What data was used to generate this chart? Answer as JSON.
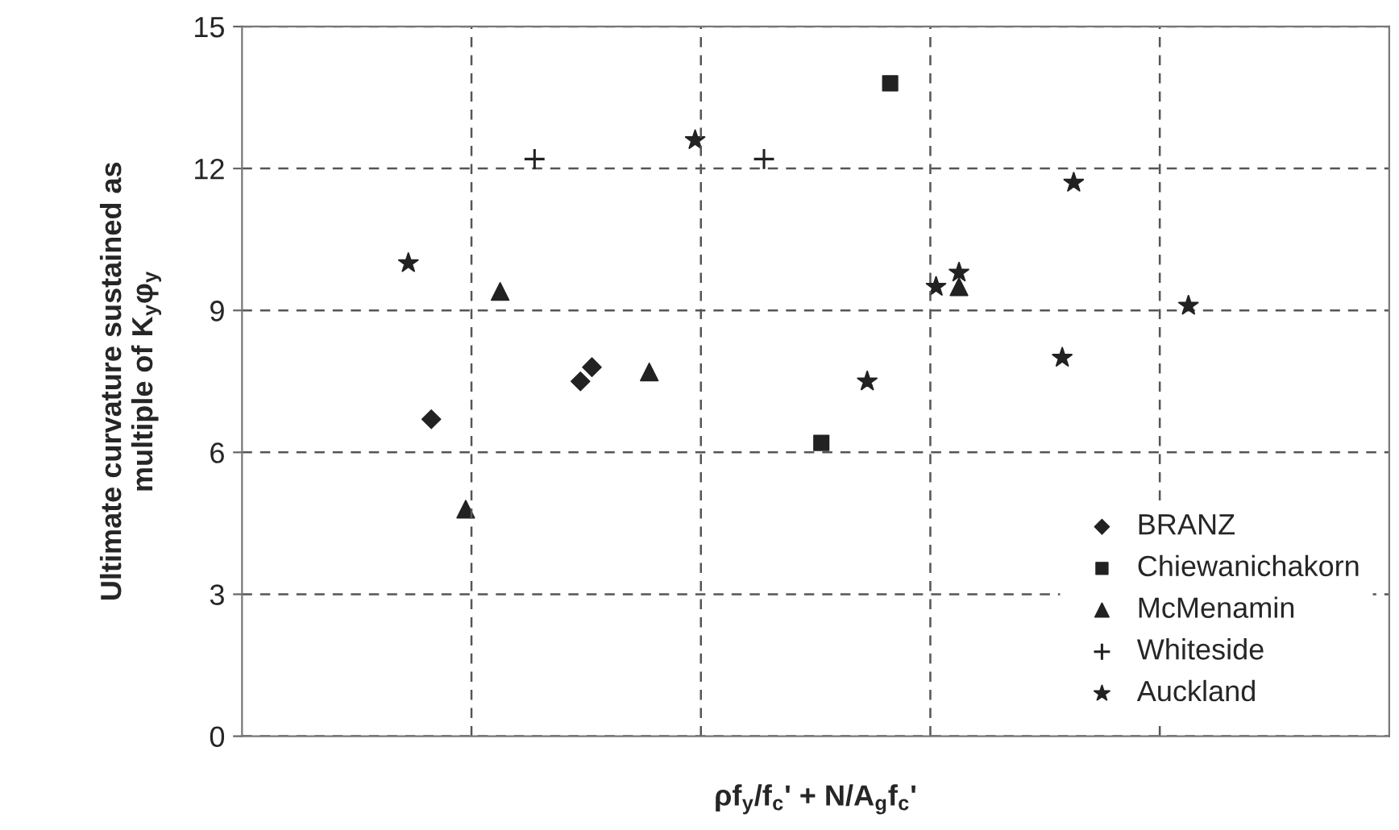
{
  "chart_data": {
    "type": "scatter",
    "xlabel": "ρf$_{y}$/f$_{c}$' + N/A$_{g}$f$_{c}$'",
    "ylabel": "Ultimate curvature sustained as\nmultiple of K$_{y}$φ$_{y}$",
    "categories": [
      null,
      null,
      null,
      null,
      null,
      null,
      null,
      null,
      null,
      null,
      null,
      null,
      null,
      null,
      null,
      null,
      null,
      null,
      null,
      null,
      null,
      null,
      null,
      null,
      null,
      null,
      null,
      null,
      null,
      null,
      null,
      null,
      null,
      null,
      null,
      null,
      null,
      null,
      null,
      null,
      null,
      null,
      null,
      null,
      null,
      null,
      null,
      null,
      null,
      null,
      null,
      null,
      null,
      null,
      null,
      null,
      null,
      null,
      null,
      null,
      null,
      null,
      null,
      null,
      null,
      null,
      null,
      null,
      null,
      null,
      null,
      null,
      null,
      null,
      null,
      null,
      null,
      null,
      null,
      null,
      null,
      null,
      null,
      null,
      null,
      null,
      null,
      null,
      null,
      null,
      null,
      null,
      null,
      null,
      null,
      null,
      null,
      null,
      null,
      null
    ],
    "ylim": [
      0,
      15
    ],
    "yticks": [
      0,
      3,
      6,
      9,
      12,
      15
    ],
    "tick_labels": "y",
    "grid": true,
    "legend": "bottom right",
    "series": [
      {
        "name": "BRANZ",
        "color": "#222222",
        "marker": "diamond",
        "values": [
          null,
          null,
          null,
          null,
          null,
          null,
          null,
          null,
          null,
          null,
          null,
          null,
          null,
          null,
          null,
          null,
          6.7,
          null,
          null,
          null,
          null,
          null,
          null,
          null,
          null,
          null,
          null,
          null,
          null,
          7.5,
          7.8,
          null,
          null,
          null,
          null,
          null,
          null,
          null,
          null,
          null,
          null,
          null,
          null,
          null,
          null,
          null,
          null,
          null,
          null,
          null,
          null,
          null,
          null,
          null,
          null,
          null,
          null,
          null,
          null,
          null,
          null,
          null,
          null,
          null,
          null,
          null,
          null,
          null,
          null,
          null,
          null,
          null,
          null,
          null,
          null,
          null,
          null,
          null,
          null,
          null,
          null,
          null,
          null,
          null,
          null,
          null,
          null,
          null,
          null,
          null,
          null,
          null,
          null,
          null,
          null,
          null,
          null,
          null,
          null,
          null
        ]
      },
      {
        "name": "Chiewanichakorn",
        "color": "#222222",
        "marker": "square",
        "values": [
          null,
          null,
          null,
          null,
          null,
          null,
          null,
          null,
          null,
          null,
          null,
          null,
          null,
          null,
          null,
          null,
          null,
          null,
          null,
          null,
          null,
          null,
          null,
          null,
          null,
          null,
          null,
          null,
          null,
          null,
          null,
          null,
          null,
          null,
          null,
          null,
          null,
          null,
          null,
          null,
          null,
          null,
          null,
          null,
          null,
          null,
          null,
          null,
          null,
          null,
          6.2,
          null,
          null,
          null,
          null,
          null,
          13.8,
          null,
          null,
          null,
          null,
          null,
          null,
          null,
          null,
          null,
          null,
          null,
          null,
          null,
          null,
          null,
          null,
          null,
          null,
          null,
          null,
          null,
          null,
          null,
          null,
          null,
          null,
          null,
          null,
          null,
          null,
          null,
          null,
          null,
          null,
          null,
          null,
          null,
          null,
          null,
          null,
          null,
          null,
          null
        ]
      },
      {
        "name": "McMenamin",
        "color": "#222222",
        "marker": "triangle",
        "values": [
          null,
          null,
          null,
          null,
          null,
          null,
          null,
          null,
          null,
          null,
          null,
          null,
          null,
          null,
          null,
          null,
          null,
          null,
          null,
          4.8,
          null,
          null,
          9.4,
          null,
          null,
          null,
          null,
          null,
          null,
          null,
          null,
          null,
          null,
          null,
          null,
          7.7,
          null,
          null,
          null,
          null,
          null,
          null,
          null,
          null,
          null,
          null,
          null,
          null,
          null,
          null,
          null,
          null,
          null,
          null,
          null,
          null,
          null,
          null,
          null,
          null,
          null,
          null,
          9.5,
          null,
          null,
          null,
          null,
          null,
          null,
          null,
          null,
          null,
          null,
          null,
          null,
          null,
          null,
          null,
          null,
          null,
          null,
          null,
          null,
          null,
          null,
          null,
          null,
          null,
          null,
          null,
          null,
          null,
          null,
          null,
          null,
          null,
          null,
          null,
          null,
          null
        ]
      },
      {
        "name": "Whiteside",
        "color": "#222222",
        "marker": "cross",
        "values": [
          null,
          null,
          null,
          null,
          null,
          null,
          null,
          null,
          null,
          null,
          null,
          null,
          null,
          null,
          null,
          null,
          null,
          null,
          null,
          null,
          null,
          null,
          null,
          null,
          null,
          12.2,
          null,
          null,
          null,
          null,
          null,
          null,
          null,
          null,
          null,
          null,
          null,
          null,
          null,
          null,
          null,
          null,
          null,
          null,
          null,
          12.2,
          null,
          null,
          null,
          null,
          null,
          null,
          null,
          null,
          null,
          null,
          null,
          null,
          null,
          null,
          null,
          null,
          null,
          null,
          null,
          null,
          null,
          null,
          null,
          null,
          null,
          null,
          null,
          null,
          null,
          null,
          null,
          null,
          null,
          null,
          null,
          null,
          null,
          null,
          null,
          null,
          null,
          null,
          null,
          null,
          null,
          null,
          null,
          null,
          null,
          null,
          null,
          null,
          null,
          null
        ]
      },
      {
        "name": "Auckland",
        "color": "#222222",
        "marker": "star",
        "values": [
          null,
          null,
          null,
          null,
          null,
          null,
          null,
          null,
          null,
          null,
          null,
          null,
          null,
          null,
          10.0,
          null,
          null,
          null,
          null,
          null,
          null,
          null,
          null,
          null,
          null,
          null,
          null,
          null,
          null,
          null,
          null,
          null,
          null,
          null,
          null,
          null,
          null,
          null,
          null,
          12.6,
          null,
          null,
          null,
          null,
          null,
          null,
          null,
          null,
          null,
          null,
          null,
          null,
          null,
          null,
          7.5,
          null,
          null,
          null,
          null,
          null,
          9.5,
          null,
          9.8,
          null,
          null,
          null,
          null,
          null,
          null,
          null,
          null,
          8.0,
          11.7,
          null,
          null,
          null,
          null,
          null,
          null,
          null,
          null,
          null,
          9.1,
          null,
          null,
          null,
          null,
          null,
          null,
          null,
          null,
          null,
          null,
          null,
          null,
          null,
          null,
          null,
          null,
          null
        ]
      }
    ]
  }
}
